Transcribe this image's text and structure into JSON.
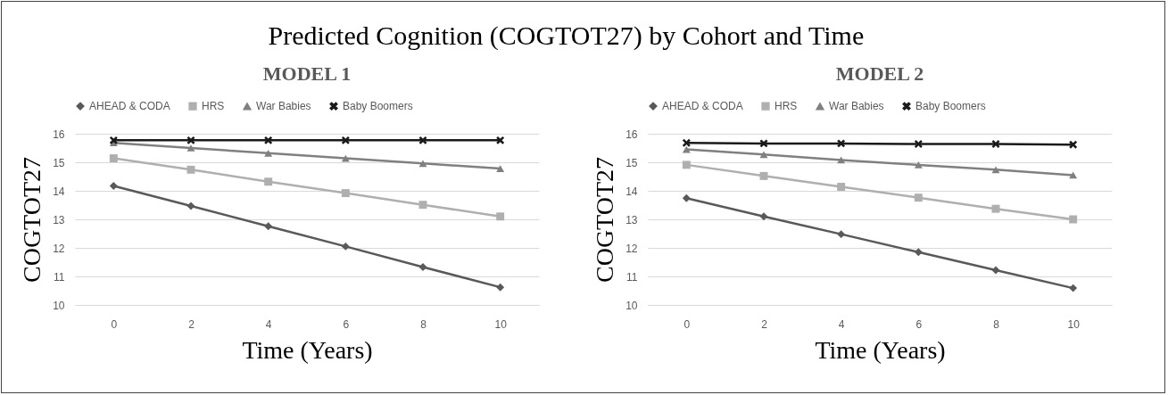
{
  "chart_data": [
    {
      "type": "line",
      "title": "Predicted Cognition (COGTOT27)  by Cohort and Time",
      "subtitle": "MODEL 1",
      "xlabel": "Time (Years)",
      "ylabel": "COGTOT27",
      "categories": [
        "0",
        "2",
        "4",
        "6",
        "8",
        "10"
      ],
      "ylim": [
        10,
        16
      ],
      "yticks": [
        10,
        11,
        12,
        13,
        14,
        15,
        16
      ],
      "grid": "y",
      "legend": "top",
      "series": [
        {
          "name": "AHEAD & CODA",
          "color": "#595959",
          "marker": "diamond",
          "values": [
            14.17,
            13.47,
            12.76,
            12.05,
            11.33,
            10.62
          ]
        },
        {
          "name": "HRS",
          "color": "#afafaf",
          "marker": "square",
          "values": [
            15.14,
            14.74,
            14.32,
            13.92,
            13.51,
            13.1
          ]
        },
        {
          "name": "War Babies",
          "color": "#808080",
          "marker": "triangle",
          "values": [
            15.68,
            15.5,
            15.32,
            15.14,
            14.96,
            14.78
          ]
        },
        {
          "name": "Baby Boomers",
          "color": "#1a1a1a",
          "marker": "cross",
          "values": [
            15.77,
            15.77,
            15.77,
            15.77,
            15.77,
            15.77
          ]
        }
      ]
    },
    {
      "type": "line",
      "subtitle": "MODEL 2",
      "xlabel": "Time (Years)",
      "ylabel": "COGTOT27",
      "categories": [
        "0",
        "2",
        "4",
        "6",
        "8",
        "10"
      ],
      "ylim": [
        10,
        16
      ],
      "yticks": [
        10,
        11,
        12,
        13,
        14,
        15,
        16
      ],
      "grid": "y",
      "legend": "top",
      "series": [
        {
          "name": "AHEAD & CODA",
          "color": "#595959",
          "marker": "diamond",
          "values": [
            13.74,
            13.1,
            12.48,
            11.85,
            11.22,
            10.59
          ]
        },
        {
          "name": "HRS",
          "color": "#afafaf",
          "marker": "square",
          "values": [
            14.91,
            14.52,
            14.14,
            13.76,
            13.37,
            13.0
          ]
        },
        {
          "name": "War Babies",
          "color": "#808080",
          "marker": "triangle",
          "values": [
            15.45,
            15.27,
            15.08,
            14.91,
            14.74,
            14.55
          ]
        },
        {
          "name": "Baby Boomers",
          "color": "#1a1a1a",
          "marker": "cross",
          "values": [
            15.68,
            15.66,
            15.66,
            15.64,
            15.64,
            15.62
          ]
        }
      ]
    }
  ]
}
